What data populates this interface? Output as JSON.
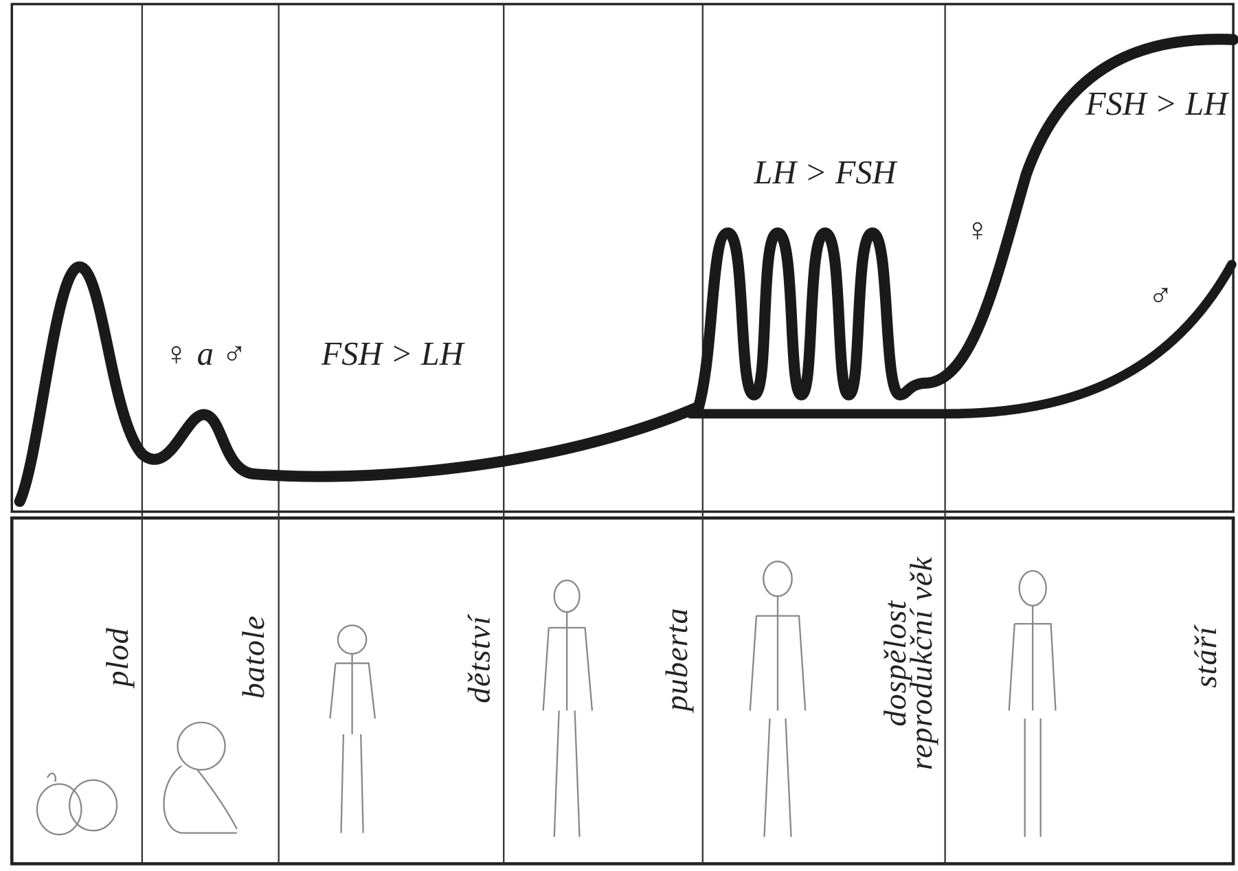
{
  "annotations": {
    "female_and_male": "♀ a ♂",
    "childhood_ratio": "FSH > LH",
    "adult_ratio": "LH > FSH",
    "female": "♀",
    "male": "♂",
    "old_age_ratio": "FSH > LH"
  },
  "stages": [
    {
      "label": "plod"
    },
    {
      "label": "batole"
    },
    {
      "label": "dětství"
    },
    {
      "label": "puberta"
    },
    {
      "label": "dospělost",
      "sublabel": "reprodukční věk"
    },
    {
      "label": "stáří"
    }
  ]
}
